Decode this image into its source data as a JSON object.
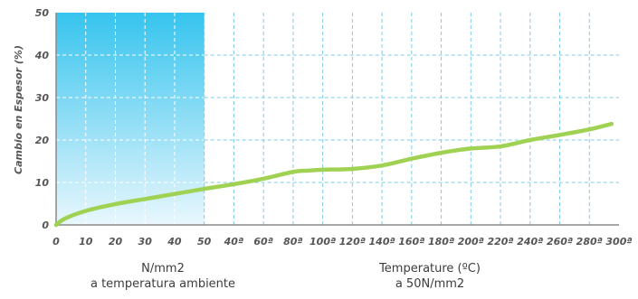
{
  "chart_data": {
    "type": "line",
    "ylabel": "Cambio en Espesor (%)",
    "ylim": [
      0,
      50
    ],
    "yticks": [
      "0",
      "10",
      "20",
      "30",
      "40",
      "50"
    ],
    "x_tick_labels": [
      "0",
      "10",
      "20",
      "30",
      "40",
      "50",
      "40ª",
      "60ª",
      "80ª",
      "100ª",
      "120ª",
      "140ª",
      "160ª",
      "180ª",
      "200ª",
      "220ª",
      "240ª",
      "260ª",
      "280ª",
      "300ª"
    ],
    "grid": true,
    "highlight_color": "#36c4ee",
    "line_color": "#9fd252",
    "series": [
      {
        "x": [
          "0",
          "3",
          "10",
          "20",
          "30",
          "40",
          "50",
          "40ª",
          "60ª",
          "80ª",
          "90ª",
          "100ª",
          "120ª",
          "140ª",
          "160ª",
          "180ª",
          "200ª",
          "220ª",
          "240ª",
          "260ª",
          "280ª",
          "295ª"
        ],
        "values": [
          0,
          1.5,
          3.3,
          4.9,
          6.1,
          7.3,
          8.5,
          9.6,
          10.9,
          12.5,
          12.8,
          13.0,
          13.2,
          14.0,
          15.6,
          17.0,
          18.0,
          18.5,
          20.0,
          21.2,
          22.5,
          23.8
        ]
      }
    ]
  },
  "captions": {
    "left_line1": "N/mm2",
    "left_line2": "a temperatura ambiente",
    "right_line1": "Temperature (ºC)",
    "right_line2": "a 50N/mm2"
  }
}
